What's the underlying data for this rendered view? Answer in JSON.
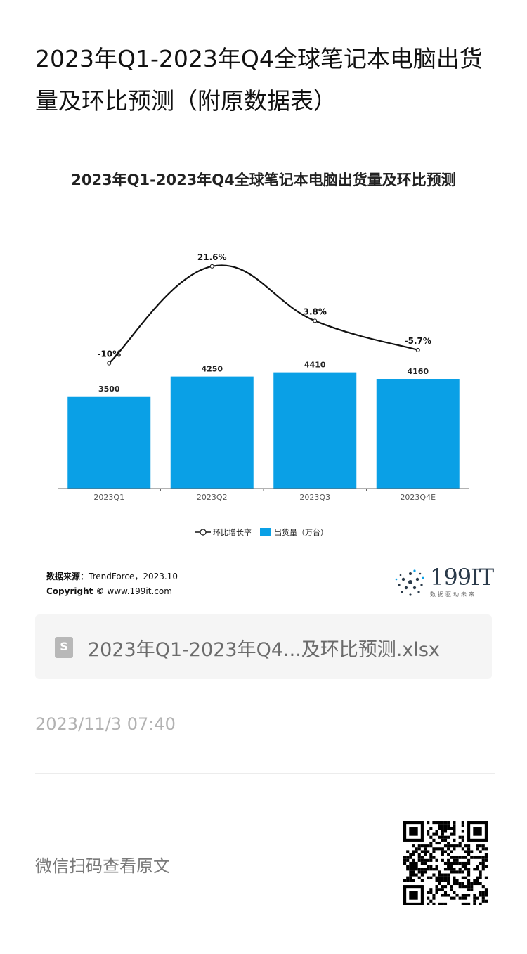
{
  "page_title": "2023年Q1-2023年Q4全球笔记本电脑出货量及环比预测（附原数据表）",
  "chart_data": {
    "type": "bar",
    "title": "2023年Q1-2023年Q4全球笔记本电脑出货量及环比预测",
    "categories": [
      "2023Q1",
      "2023Q2",
      "2023Q3",
      "2023Q4E"
    ],
    "series": [
      {
        "name": "出货量（万台）",
        "type": "bar",
        "color": "#0aa0e6",
        "values": [
          3500,
          4250,
          4410,
          4160
        ],
        "labels": [
          "3500",
          "4250",
          "4410",
          "4160"
        ]
      },
      {
        "name": "环比增长率",
        "type": "line",
        "color": "#111111",
        "values": [
          -10,
          21.6,
          3.8,
          -5.7
        ],
        "labels": [
          "-10%",
          "21.6%",
          "3.8%",
          "-5.7%"
        ]
      }
    ],
    "legend_position": "bottom-center",
    "grid": false
  },
  "source": {
    "label": "数据来源：",
    "text": "TrendForce，2023.10",
    "copyright_label": "Copyright ©",
    "copyright_text": "www.199it.com"
  },
  "logo": {
    "text": "199IT",
    "subtitle": "数据驱动未来"
  },
  "attachment": {
    "icon": "spreadsheet-file-icon",
    "filename": "2023年Q1-2023年Q4...及环比预测.xlsx"
  },
  "post_date": "2023/11/3 07:40",
  "qr_hint": "微信扫码查看原文"
}
